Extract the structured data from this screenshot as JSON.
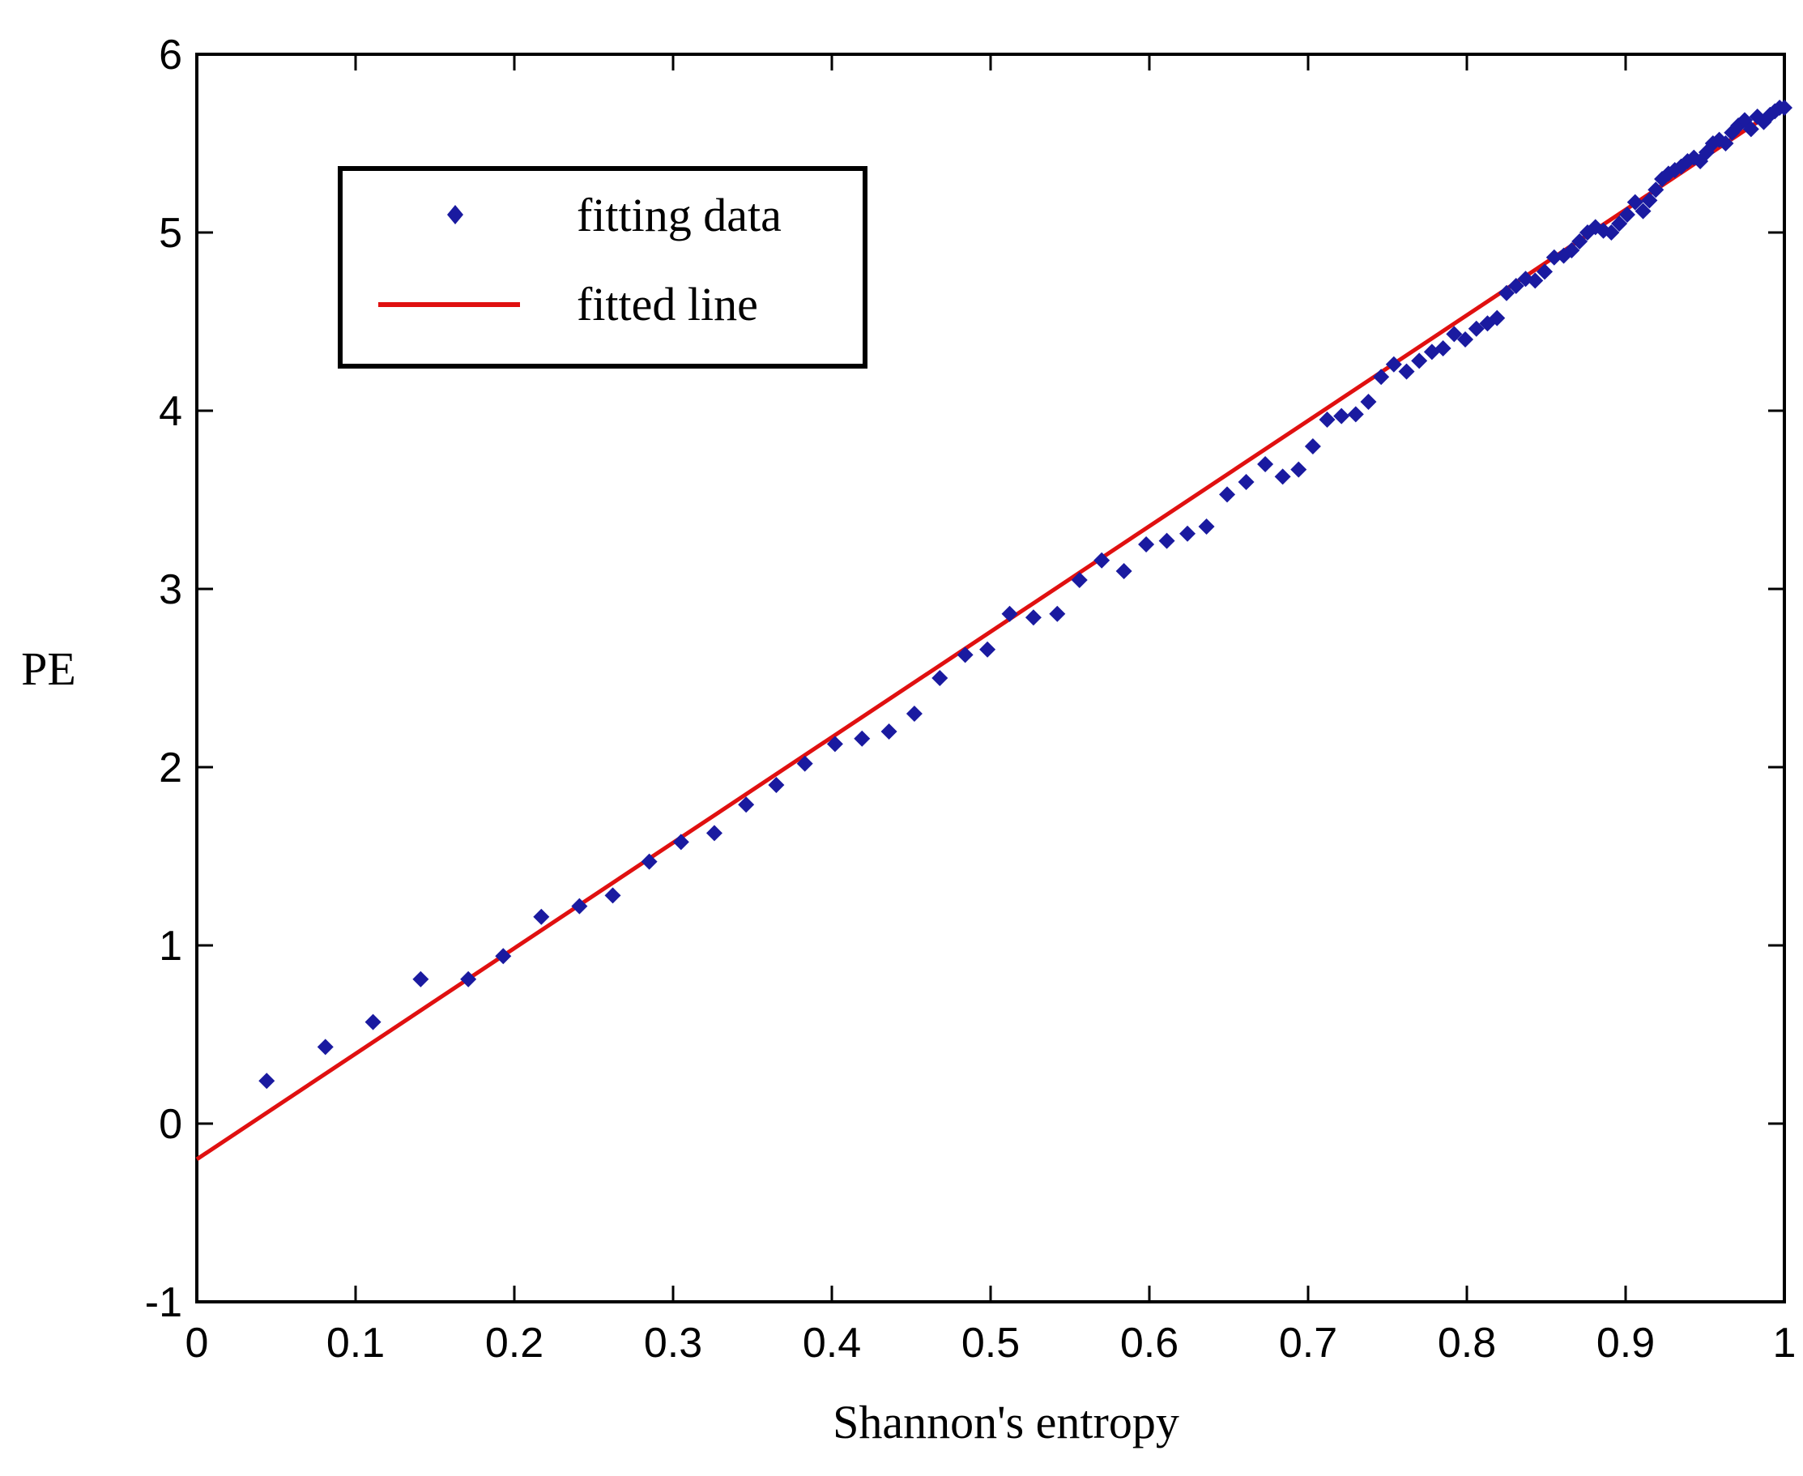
{
  "chart_data": {
    "type": "scatter",
    "title": "",
    "xlabel": "Shannon's entropy",
    "ylabel": "PE",
    "xlim": [
      0,
      1
    ],
    "ylim": [
      -1,
      6
    ],
    "xticks": [
      "0",
      "0.1",
      "0.2",
      "0.3",
      "0.4",
      "0.5",
      "0.6",
      "0.7",
      "0.8",
      "0.9",
      "1"
    ],
    "yticks": [
      "-1",
      "0",
      "1",
      "2",
      "3",
      "4",
      "5",
      "6"
    ],
    "grid": false,
    "legend_position": "top-left",
    "series": [
      {
        "name": "fitting data",
        "kind": "points",
        "color": "#1a1aa0",
        "x": [
          0.044,
          0.081,
          0.111,
          0.141,
          0.171,
          0.193,
          0.217,
          0.241,
          0.262,
          0.285,
          0.305,
          0.326,
          0.346,
          0.365,
          0.383,
          0.402,
          0.419,
          0.436,
          0.452,
          0.468,
          0.484,
          0.498,
          0.512,
          0.527,
          0.542,
          0.556,
          0.57,
          0.584,
          0.598,
          0.611,
          0.624,
          0.636,
          0.649,
          0.661,
          0.673,
          0.684,
          0.694,
          0.703,
          0.712,
          0.721,
          0.73,
          0.738,
          0.746,
          0.754,
          0.762,
          0.77,
          0.778,
          0.785,
          0.792,
          0.799,
          0.806,
          0.813,
          0.819,
          0.825,
          0.831,
          0.837,
          0.843,
          0.849,
          0.855,
          0.861,
          0.866,
          0.871,
          0.876,
          0.881,
          0.886,
          0.891,
          0.896,
          0.901,
          0.906,
          0.911,
          0.915,
          0.919,
          0.923,
          0.927,
          0.931,
          0.935,
          0.939,
          0.943,
          0.947,
          0.951,
          0.955,
          0.959,
          0.963,
          0.967,
          0.971,
          0.975,
          0.979,
          0.983,
          0.987,
          0.991,
          0.994,
          0.997,
          1.0
        ],
        "y": [
          0.24,
          0.43,
          0.57,
          0.81,
          0.81,
          0.94,
          1.16,
          1.22,
          1.28,
          1.47,
          1.58,
          1.63,
          1.79,
          1.9,
          2.02,
          2.13,
          2.16,
          2.2,
          2.3,
          2.5,
          2.63,
          2.66,
          2.86,
          2.84,
          2.86,
          3.05,
          3.16,
          3.1,
          3.25,
          3.27,
          3.31,
          3.35,
          3.53,
          3.6,
          3.7,
          3.63,
          3.67,
          3.8,
          3.95,
          3.97,
          3.98,
          4.05,
          4.19,
          4.26,
          4.22,
          4.28,
          4.33,
          4.35,
          4.43,
          4.4,
          4.46,
          4.49,
          4.52,
          4.66,
          4.7,
          4.74,
          4.73,
          4.78,
          4.86,
          4.87,
          4.9,
          4.95,
          5.0,
          5.03,
          5.01,
          5.0,
          5.05,
          5.1,
          5.17,
          5.12,
          5.18,
          5.24,
          5.3,
          5.33,
          5.35,
          5.37,
          5.4,
          5.42,
          5.4,
          5.45,
          5.5,
          5.52,
          5.5,
          5.56,
          5.6,
          5.63,
          5.58,
          5.65,
          5.62,
          5.66,
          5.68,
          5.7,
          5.7
        ]
      },
      {
        "name": "fitted line",
        "kind": "line",
        "color": "#e01010",
        "x": [
          0,
          1
        ],
        "y": [
          -0.2,
          5.72
        ]
      }
    ]
  }
}
